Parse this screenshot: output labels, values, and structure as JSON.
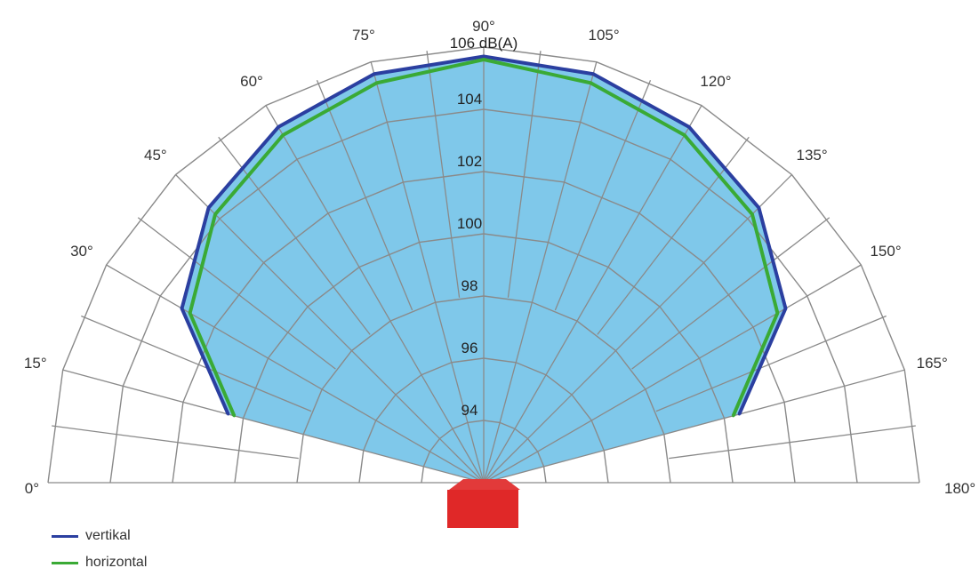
{
  "chart_data": {
    "type": "polar",
    "unit_label": "106 dB(A)",
    "angle_labels": [
      "0°",
      "15°",
      "30°",
      "45°",
      "60°",
      "75°",
      "90°",
      "105°",
      "120°",
      "135°",
      "150°",
      "165°",
      "180°"
    ],
    "ring_labels": [
      "94",
      "96",
      "98",
      "100",
      "102",
      "104"
    ],
    "radial_range": [
      92,
      106
    ],
    "series": [
      {
        "name": "vertikal",
        "color": "#2b3fa0",
        "angles": [
          15,
          30,
          45,
          60,
          75,
          90,
          105,
          120,
          135,
          150,
          165
        ],
        "values": [
          100.5,
          103.2,
          104.5,
          105.2,
          105.6,
          105.7,
          105.6,
          105.2,
          104.5,
          103.2,
          100.5
        ]
      },
      {
        "name": "horizontal",
        "color": "#3aaa35",
        "angles": [
          15,
          30,
          45,
          60,
          75,
          90,
          105,
          120,
          135,
          150,
          165
        ],
        "values": [
          100.3,
          102.9,
          104.2,
          104.9,
          105.3,
          105.6,
          105.3,
          104.9,
          104.2,
          102.9,
          100.3
        ]
      }
    ],
    "fill_color": "#7fc8ea",
    "grid": true,
    "legend_position": "bottom-left"
  }
}
